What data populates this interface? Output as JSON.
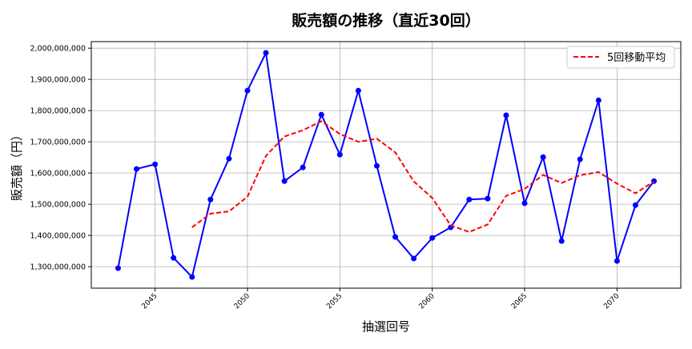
{
  "chart_data": {
    "type": "line",
    "title": "販売額の推移（直近30回）",
    "xlabel": "抽選回号",
    "ylabel": "販売額（円）",
    "x": [
      2043,
      2044,
      2045,
      2046,
      2047,
      2048,
      2049,
      2050,
      2051,
      2052,
      2053,
      2054,
      2055,
      2056,
      2057,
      2058,
      2059,
      2060,
      2061,
      2062,
      2063,
      2064,
      2065,
      2066,
      2067,
      2068,
      2069,
      2070,
      2071,
      2072
    ],
    "series": [
      {
        "color": "#0000ff",
        "style": "solid-with-markers",
        "values": [
          1295000000,
          1613000000,
          1628000000,
          1328000000,
          1267000000,
          1515000000,
          1646000000,
          1864000000,
          1985000000,
          1574000000,
          1618000000,
          1787000000,
          1659000000,
          1864000000,
          1623000000,
          1395000000,
          1326000000,
          1392000000,
          1426000000,
          1515000000,
          1518000000,
          1785000000,
          1503000000,
          1651000000,
          1382000000,
          1644000000,
          1833000000,
          1318000000,
          1497000000,
          1574000000
        ]
      },
      {
        "name": "5回移動平均",
        "color": "#ff0000",
        "style": "dashed",
        "values": [
          null,
          null,
          null,
          null,
          1426000000,
          1470000000,
          1477000000,
          1524000000,
          1655000000,
          1717000000,
          1737000000,
          1766000000,
          1725000000,
          1700000000,
          1710000000,
          1666000000,
          1573000000,
          1520000000,
          1432000000,
          1411000000,
          1435000000,
          1527000000,
          1549000000,
          1594000000,
          1568000000,
          1593000000,
          1603000000,
          1566000000,
          1535000000,
          1573000000
        ]
      }
    ],
    "xticks": [
      "2045",
      "2050",
      "2055",
      "2060",
      "2065",
      "2070"
    ],
    "yticks": [
      "1,300,000,000",
      "1,400,000,000",
      "1,500,000,000",
      "1,600,000,000",
      "1,700,000,000",
      "1,800,000,000",
      "1,900,000,000",
      "2,000,000,000"
    ],
    "xlim": [
      2041.55,
      2073.45
    ],
    "ylim": [
      1231000000,
      2021000000
    ],
    "grid": true,
    "legend": "top-right"
  }
}
